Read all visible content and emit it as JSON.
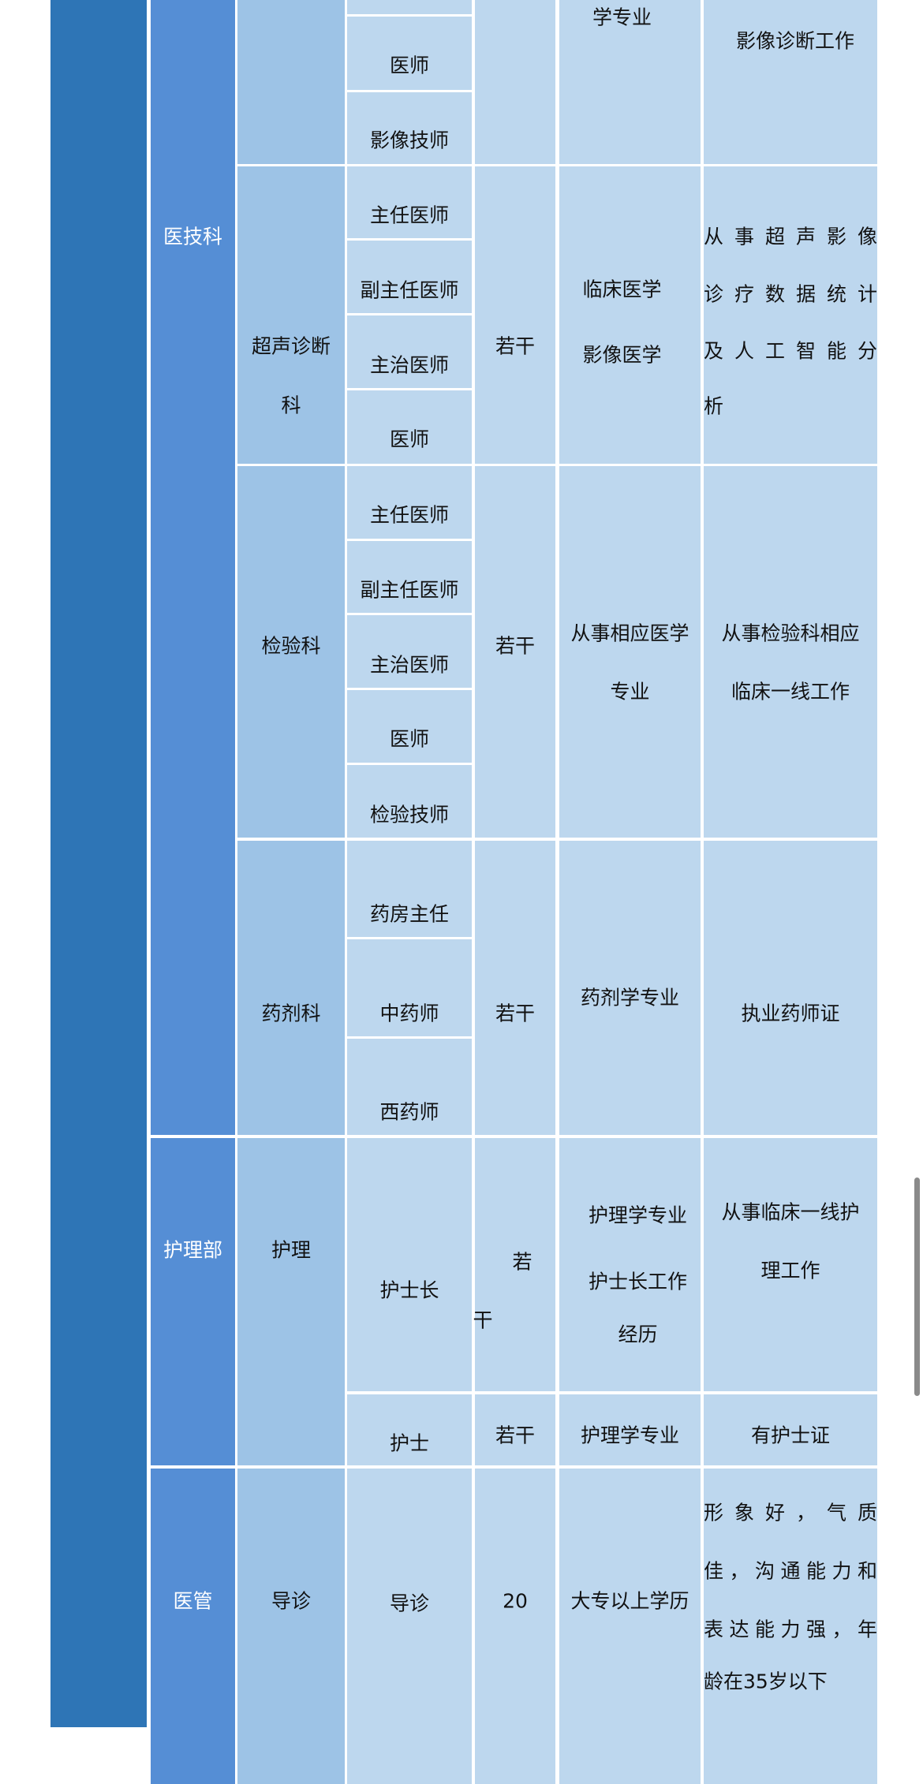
{
  "colors": {
    "column_dark": "#2e75b6",
    "column_mid": "#558ed5",
    "column_light": "#9dc3e6",
    "cell": "#bdd7ee",
    "scrollbar": "#8a8a8a"
  },
  "departments": [
    "医技科",
    "护理部",
    "医管"
  ],
  "subdepartments": [
    "超声诊断",
    "科",
    "检验科",
    "药剂科",
    "护理",
    "导诊"
  ],
  "positions": [
    "医师",
    "影像技师",
    "主任医师",
    "副主任医师",
    "主治医师",
    "医师",
    "主任医师",
    "副主任医师",
    "主治医师",
    "医师",
    "检验技师",
    "药房主任",
    "中药师",
    "西药师",
    "护士长",
    "护士",
    "导诊"
  ],
  "counts": [
    "若干",
    "若干",
    "若干",
    "若",
    "干",
    "若干",
    "20"
  ],
  "majors": [
    "学专业",
    "临床医学",
    "影像医学",
    "从事相应医学",
    "专业",
    "药剂学专业",
    "护理学专业",
    "护士长工作",
    "经历",
    "护理学专业",
    "大专以上学历"
  ],
  "requirements": [
    "影像诊断工作",
    "从事超声影像",
    "诊疗数据统计",
    "及人工智能分",
    "析",
    "从事检验科相应",
    "临床一线工作",
    "执业药师证",
    "从事临床一线护",
    "理工作",
    "有护士证",
    "形象好，气质",
    "佳，沟通能力和",
    "表达能力强，年",
    "龄在35岁以下"
  ]
}
